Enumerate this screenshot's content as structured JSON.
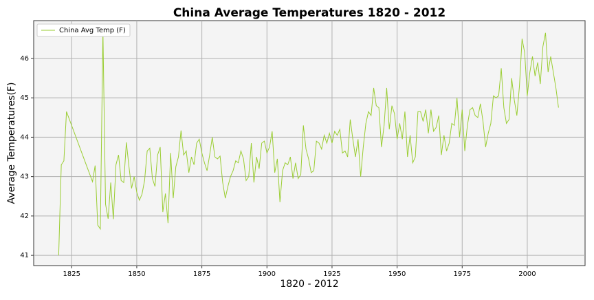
{
  "chart_data": {
    "type": "line",
    "title": "China Average Temperatures 1820 - 2012",
    "x_label": "1820 - 2012",
    "y_label": "Average Temperatures(F)",
    "legend": "upper left",
    "grid": true,
    "xlim": [
      1810.4,
      2022.2
    ],
    "ylim": [
      40.74,
      46.96
    ],
    "xticks": [
      1825,
      1850,
      1875,
      1900,
      1925,
      1950,
      1975,
      2000
    ],
    "yticks": [
      41,
      42,
      43,
      44,
      45,
      46
    ],
    "x": [
      1820,
      1821,
      1822,
      1823,
      1833,
      1834,
      1835,
      1836,
      1837,
      1838,
      1839,
      1840,
      1841,
      1842,
      1843,
      1844,
      1845,
      1846,
      1847,
      1848,
      1849,
      1850,
      1851,
      1852,
      1853,
      1854,
      1855,
      1856,
      1857,
      1858,
      1859,
      1860,
      1861,
      1862,
      1863,
      1864,
      1865,
      1866,
      1867,
      1868,
      1869,
      1870,
      1871,
      1872,
      1873,
      1874,
      1875,
      1876,
      1877,
      1878,
      1879,
      1880,
      1881,
      1882,
      1883,
      1884,
      1885,
      1886,
      1887,
      1888,
      1889,
      1890,
      1891,
      1892,
      1893,
      1894,
      1895,
      1896,
      1897,
      1898,
      1899,
      1900,
      1901,
      1902,
      1903,
      1904,
      1905,
      1906,
      1907,
      1908,
      1909,
      1910,
      1911,
      1912,
      1913,
      1914,
      1915,
      1916,
      1917,
      1918,
      1919,
      1920,
      1921,
      1922,
      1923,
      1924,
      1925,
      1926,
      1927,
      1928,
      1929,
      1930,
      1931,
      1932,
      1933,
      1934,
      1935,
      1936,
      1937,
      1938,
      1939,
      1940,
      1941,
      1942,
      1943,
      1944,
      1945,
      1946,
      1947,
      1948,
      1949,
      1950,
      1951,
      1952,
      1953,
      1954,
      1955,
      1956,
      1957,
      1958,
      1959,
      1960,
      1961,
      1962,
      1963,
      1964,
      1965,
      1966,
      1967,
      1968,
      1969,
      1970,
      1971,
      1972,
      1973,
      1974,
      1975,
      1976,
      1977,
      1978,
      1979,
      1980,
      1981,
      1982,
      1983,
      1984,
      1985,
      1986,
      1987,
      1988,
      1989,
      1990,
      1991,
      1992,
      1993,
      1994,
      1995,
      1996,
      1997,
      1998,
      1999,
      2000,
      2001,
      2002,
      2003,
      2004,
      2005,
      2006,
      2007,
      2008,
      2009,
      2010,
      2011,
      2012
    ],
    "series": [
      {
        "name": "China Avg Temp (F)",
        "color": "#9acd32",
        "values": [
          41.0,
          43.3,
          43.4,
          44.65,
          42.87,
          43.28,
          41.77,
          41.67,
          46.7,
          42.3,
          41.93,
          42.85,
          41.92,
          43.3,
          43.55,
          42.9,
          42.85,
          43.87,
          43.25,
          42.7,
          43.0,
          42.6,
          42.4,
          42.55,
          42.9,
          43.65,
          43.72,
          42.95,
          42.75,
          43.55,
          43.75,
          42.1,
          42.57,
          41.82,
          43.6,
          42.45,
          43.25,
          43.5,
          44.17,
          43.55,
          43.65,
          43.1,
          43.5,
          43.3,
          43.85,
          43.95,
          43.6,
          43.35,
          43.15,
          43.55,
          44.0,
          43.5,
          43.45,
          43.52,
          42.85,
          42.45,
          42.75,
          43.0,
          43.15,
          43.4,
          43.35,
          43.65,
          43.45,
          42.9,
          43.0,
          43.85,
          42.85,
          43.5,
          43.2,
          43.85,
          43.9,
          43.6,
          43.75,
          44.15,
          43.1,
          43.45,
          42.35,
          43.15,
          43.35,
          43.3,
          43.5,
          42.95,
          43.35,
          42.95,
          43.05,
          44.3,
          43.7,
          43.45,
          43.1,
          43.15,
          43.9,
          43.85,
          43.7,
          44.05,
          43.85,
          44.1,
          43.85,
          44.15,
          44.05,
          44.2,
          43.6,
          43.65,
          43.5,
          44.45,
          43.95,
          43.5,
          43.95,
          43.0,
          43.75,
          44.35,
          44.65,
          44.55,
          45.25,
          44.8,
          44.75,
          43.75,
          44.3,
          45.25,
          44.2,
          44.8,
          44.6,
          43.95,
          44.35,
          43.95,
          44.65,
          43.5,
          44.05,
          43.35,
          43.5,
          44.65,
          44.65,
          44.4,
          44.7,
          44.1,
          44.7,
          44.15,
          44.25,
          44.55,
          43.55,
          44.05,
          43.65,
          43.85,
          44.35,
          44.3,
          45.0,
          44.0,
          44.7,
          43.65,
          44.3,
          44.7,
          44.75,
          44.55,
          44.5,
          44.85,
          44.4,
          43.75,
          44.1,
          44.35,
          45.05,
          45.0,
          45.05,
          45.75,
          44.75,
          44.35,
          44.45,
          45.5,
          44.95,
          44.55,
          45.3,
          46.5,
          46.15,
          45.05,
          45.65,
          46.05,
          45.55,
          45.9,
          45.35,
          46.3,
          46.65,
          45.65,
          46.05,
          45.65,
          45.25,
          44.75
        ]
      }
    ]
  }
}
